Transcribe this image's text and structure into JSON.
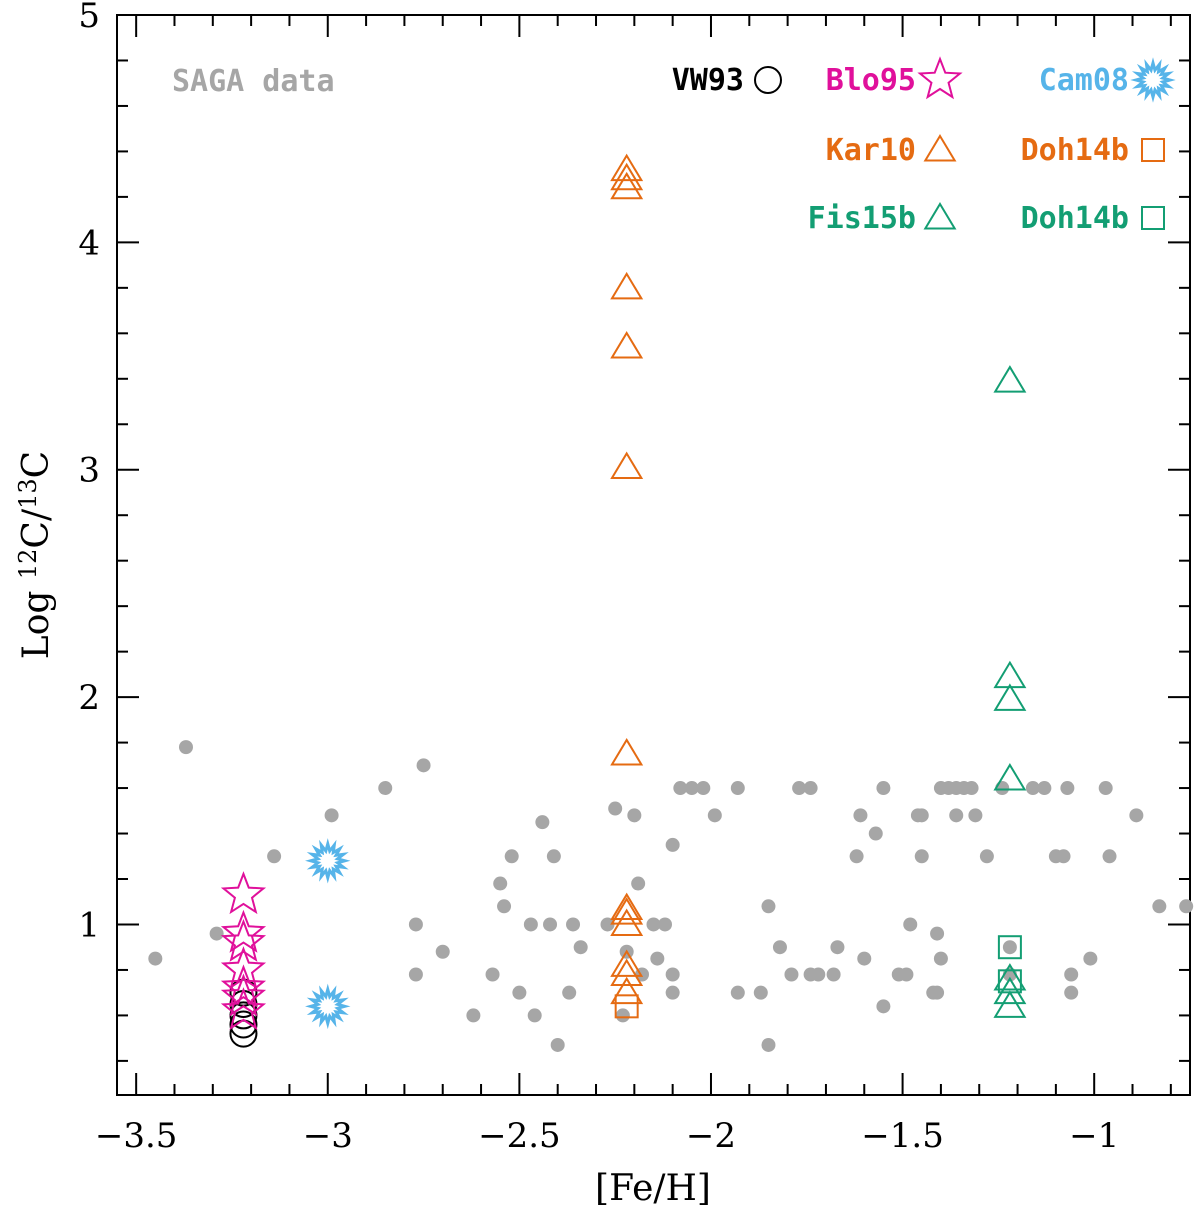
{
  "chart_data": {
    "type": "scatter",
    "title": "",
    "xlabel": "[Fe/H]",
    "ylabel_prefix": "Log ",
    "ylabel_sup1": "12",
    "ylabel_mid": "C/",
    "ylabel_sup2": "13",
    "ylabel_end": "C",
    "xlim": [
      -3.55,
      -0.75
    ],
    "ylim": [
      0.25,
      5.0
    ],
    "x_major_ticks": [
      -3.5,
      -3,
      -2.5,
      -2,
      -1.5,
      -1
    ],
    "x_tick_labels": [
      "−3.5",
      "−3",
      "−2.5",
      "−2",
      "−1.5",
      "−1"
    ],
    "x_minor_step": 0.1,
    "y_major_ticks": [
      1,
      2,
      3,
      4,
      5
    ],
    "y_tick_labels": [
      "1",
      "2",
      "3",
      "4",
      "5"
    ],
    "y_minor_step": 0.2,
    "grid": false,
    "saga_label": "SAGA data",
    "series": [
      {
        "name": "SAGA data",
        "marker": "dot",
        "color": "#a6a6a6",
        "points": [
          [
            -3.45,
            0.85
          ],
          [
            -3.37,
            1.78
          ],
          [
            -3.29,
            0.96
          ],
          [
            -3.14,
            1.3
          ],
          [
            -2.99,
            1.48
          ],
          [
            -2.85,
            1.6
          ],
          [
            -2.77,
            1.0
          ],
          [
            -2.77,
            0.78
          ],
          [
            -2.75,
            1.7
          ],
          [
            -2.7,
            0.88
          ],
          [
            -2.62,
            0.6
          ],
          [
            -2.57,
            0.78
          ],
          [
            -2.55,
            1.18
          ],
          [
            -2.54,
            1.08
          ],
          [
            -2.52,
            1.3
          ],
          [
            -2.5,
            0.7
          ],
          [
            -2.47,
            1.0
          ],
          [
            -2.46,
            0.6
          ],
          [
            -2.44,
            1.45
          ],
          [
            -2.42,
            1.0
          ],
          [
            -2.41,
            1.3
          ],
          [
            -2.4,
            0.47
          ],
          [
            -2.37,
            0.7
          ],
          [
            -2.36,
            1.0
          ],
          [
            -2.34,
            0.9
          ],
          [
            -2.27,
            1.0
          ],
          [
            -2.25,
            1.51
          ],
          [
            -2.23,
            0.6
          ],
          [
            -2.22,
            0.88
          ],
          [
            -2.2,
            1.48
          ],
          [
            -2.19,
            1.18
          ],
          [
            -2.18,
            0.78
          ],
          [
            -2.15,
            1.0
          ],
          [
            -2.14,
            0.85
          ],
          [
            -2.12,
            1.0
          ],
          [
            -2.1,
            1.35
          ],
          [
            -2.1,
            0.78
          ],
          [
            -2.1,
            0.7
          ],
          [
            -2.08,
            1.6
          ],
          [
            -2.05,
            1.6
          ],
          [
            -2.02,
            1.6
          ],
          [
            -1.99,
            1.48
          ],
          [
            -1.93,
            1.6
          ],
          [
            -1.93,
            0.7
          ],
          [
            -1.87,
            0.7
          ],
          [
            -1.85,
            1.08
          ],
          [
            -1.85,
            0.47
          ],
          [
            -1.82,
            0.9
          ],
          [
            -1.79,
            0.78
          ],
          [
            -1.77,
            1.6
          ],
          [
            -1.74,
            1.6
          ],
          [
            -1.74,
            0.78
          ],
          [
            -1.72,
            0.78
          ],
          [
            -1.68,
            0.78
          ],
          [
            -1.67,
            0.9
          ],
          [
            -1.62,
            1.3
          ],
          [
            -1.61,
            1.48
          ],
          [
            -1.6,
            0.85
          ],
          [
            -1.57,
            1.4
          ],
          [
            -1.55,
            1.6
          ],
          [
            -1.55,
            0.64
          ],
          [
            -1.51,
            0.78
          ],
          [
            -1.49,
            0.78
          ],
          [
            -1.48,
            1.0
          ],
          [
            -1.46,
            1.48
          ],
          [
            -1.45,
            1.48
          ],
          [
            -1.45,
            1.3
          ],
          [
            -1.42,
            0.7
          ],
          [
            -1.41,
            0.96
          ],
          [
            -1.41,
            0.7
          ],
          [
            -1.4,
            1.6
          ],
          [
            -1.4,
            0.85
          ],
          [
            -1.38,
            1.6
          ],
          [
            -1.36,
            1.6
          ],
          [
            -1.36,
            1.48
          ],
          [
            -1.34,
            1.6
          ],
          [
            -1.32,
            1.6
          ],
          [
            -1.31,
            1.48
          ],
          [
            -1.28,
            1.3
          ],
          [
            -1.24,
            1.6
          ],
          [
            -1.22,
            0.9
          ],
          [
            -1.22,
            0.78
          ],
          [
            -1.16,
            1.6
          ],
          [
            -1.13,
            1.6
          ],
          [
            -1.1,
            1.3
          ],
          [
            -1.08,
            1.3
          ],
          [
            -1.07,
            1.6
          ],
          [
            -1.06,
            0.78
          ],
          [
            -1.06,
            0.7
          ],
          [
            -1.01,
            0.85
          ],
          [
            -0.97,
            1.6
          ],
          [
            -0.96,
            1.3
          ],
          [
            -0.89,
            1.48
          ],
          [
            -0.83,
            1.08
          ],
          [
            -0.76,
            1.08
          ]
        ]
      },
      {
        "name": "VW93",
        "marker": "circle",
        "color": "#000000",
        "points": [
          [
            -3.22,
            0.7
          ],
          [
            -3.22,
            0.65
          ],
          [
            -3.22,
            0.6
          ],
          [
            -3.22,
            0.56
          ],
          [
            -3.22,
            0.52
          ]
        ]
      },
      {
        "name": "Blo95",
        "marker": "star",
        "color": "#e0109b",
        "points": [
          [
            -3.22,
            1.13
          ],
          [
            -3.22,
            0.96
          ],
          [
            -3.22,
            0.92
          ],
          [
            -3.22,
            0.8
          ],
          [
            -3.22,
            0.72
          ],
          [
            -3.22,
            0.68
          ],
          [
            -3.22,
            0.62
          ]
        ]
      },
      {
        "name": "Cam08",
        "marker": "burst",
        "color": "#56b4e9",
        "points": [
          [
            -3.0,
            1.28
          ],
          [
            -3.0,
            0.64
          ]
        ]
      },
      {
        "name": "Kar10",
        "marker": "triangle",
        "color": "#e56b12",
        "points": [
          [
            -2.22,
            4.32
          ],
          [
            -2.22,
            4.28
          ],
          [
            -2.22,
            4.24
          ],
          [
            -2.22,
            3.8
          ],
          [
            -2.22,
            3.54
          ],
          [
            -2.22,
            3.01
          ],
          [
            -2.22,
            1.75
          ],
          [
            -2.22,
            1.07
          ],
          [
            -2.22,
            1.05
          ],
          [
            -2.22,
            1.0
          ],
          [
            -2.22,
            0.82
          ],
          [
            -2.22,
            0.78
          ],
          [
            -2.22,
            0.7
          ]
        ]
      },
      {
        "name": "Doh14b",
        "marker": "square",
        "color": "#e56b12",
        "points": [
          [
            -2.22,
            0.64
          ]
        ]
      },
      {
        "name": "Fis15b",
        "marker": "triangle",
        "color": "#139e73",
        "points": [
          [
            -1.22,
            3.39
          ],
          [
            -1.22,
            2.09
          ],
          [
            -1.22,
            1.99
          ],
          [
            -1.22,
            1.64
          ],
          [
            -1.22,
            0.76
          ],
          [
            -1.22,
            0.7
          ],
          [
            -1.22,
            0.64
          ]
        ]
      },
      {
        "name": "Doh14b",
        "marker": "square",
        "color": "#139e73",
        "points": [
          [
            -1.22,
            0.9
          ],
          [
            -1.22,
            0.75
          ]
        ]
      }
    ],
    "legend": [
      {
        "label": "VW93",
        "marker": "circle",
        "color": "#000000",
        "row": 0,
        "col": 0
      },
      {
        "label": "Blo95",
        "marker": "star",
        "color": "#e0109b",
        "row": 0,
        "col": 1
      },
      {
        "label": "Cam08",
        "marker": "burst",
        "color": "#56b4e9",
        "row": 0,
        "col": 2
      },
      {
        "label": "Kar10",
        "marker": "triangle",
        "color": "#e56b12",
        "row": 1,
        "col": 1
      },
      {
        "label": "Doh14b",
        "marker": "square",
        "color": "#e56b12",
        "row": 1,
        "col": 2
      },
      {
        "label": "Fis15b",
        "marker": "triangle",
        "color": "#139e73",
        "row": 2,
        "col": 1
      },
      {
        "label": "Doh14b",
        "marker": "square",
        "color": "#139e73",
        "row": 2,
        "col": 2
      }
    ],
    "legend_position": "top-right",
    "saga_label_position": "top-left"
  }
}
